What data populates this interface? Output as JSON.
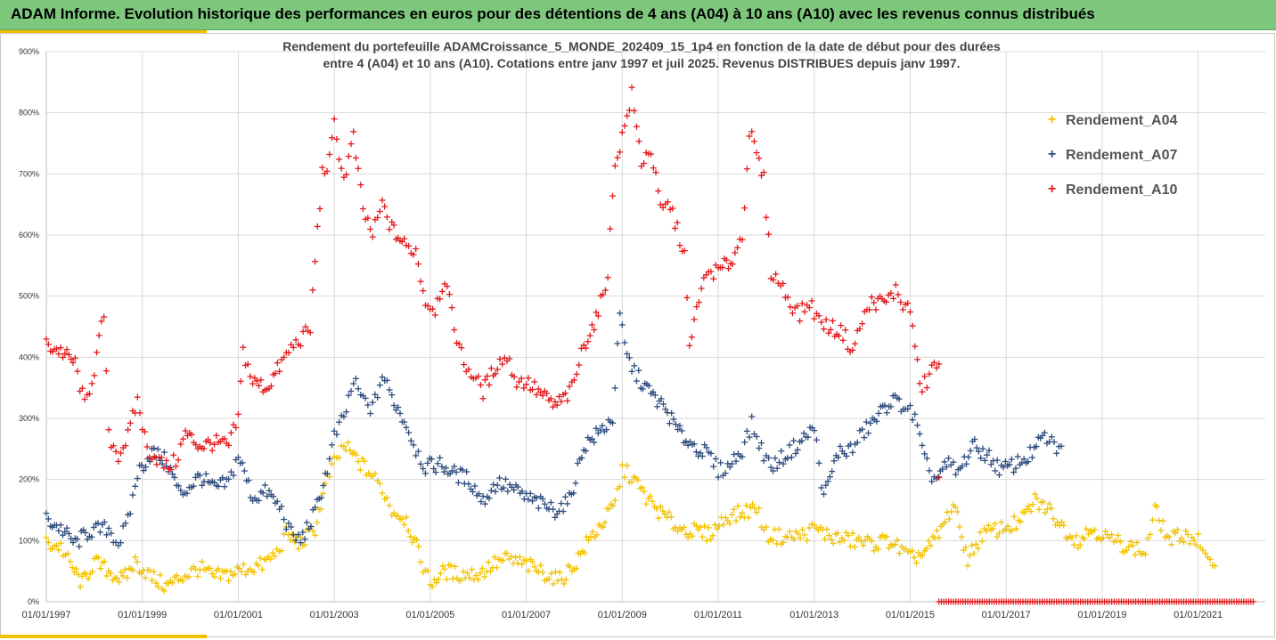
{
  "header": {
    "title": "ADAM Informe. Evolution historique des performances en euros pour des détentions de 4 ans (A04) à 10 ans (A10) avec les revenus connus distribués"
  },
  "colors": {
    "banner": "#7ec87e",
    "accent": "#f2c200",
    "A04": "#f2c200",
    "A07": "#2f4d7e",
    "A10": "#e41a1c",
    "grid": "#d9d9d9"
  },
  "chart_data": {
    "type": "scatter",
    "title_line1": "Rendement du portefeuille ADAMCroissance_5_MONDE_202409_15_1p4  en fonction de la date de début pour des durées",
    "title_line2": "entre 4 (A04) et 10 ans (A10). Cotations  entre janv 1997 et juil 2025. Revenus DISTRIBUES depuis janv 1997.",
    "xlabel": "",
    "ylabel": "",
    "xlim": [
      1997.0,
      2022.4
    ],
    "ylim": [
      0,
      900
    ],
    "y_ticks": [
      "0%",
      "100%",
      "200%",
      "300%",
      "400%",
      "500%",
      "600%",
      "700%",
      "800%",
      "900%"
    ],
    "x_ticks": [
      {
        "label": "01/01/1997",
        "year": 1997
      },
      {
        "label": "01/01/1999",
        "year": 1999
      },
      {
        "label": "01/01/2001",
        "year": 2001
      },
      {
        "label": "01/01/2003",
        "year": 2003
      },
      {
        "label": "01/01/2005",
        "year": 2005
      },
      {
        "label": "01/01/2007",
        "year": 2007
      },
      {
        "label": "01/01/2009",
        "year": 2009
      },
      {
        "label": "01/01/2011",
        "year": 2011
      },
      {
        "label": "01/01/2013",
        "year": 2013
      },
      {
        "label": "01/01/2015",
        "year": 2015
      },
      {
        "label": "01/01/2017",
        "year": 2017
      },
      {
        "label": "01/01/2019",
        "year": 2019
      },
      {
        "label": "01/01/2021",
        "year": 2021
      }
    ],
    "grid": true,
    "legend_position": "right",
    "marker": "+",
    "series": [
      {
        "name": "Rendement_A04",
        "key": "A04",
        "points": [
          [
            1997.0,
            95
          ],
          [
            1997.3,
            90
          ],
          [
            1997.5,
            60
          ],
          [
            1997.75,
            30
          ],
          [
            1998.0,
            65
          ],
          [
            1998.3,
            50
          ],
          [
            1998.6,
            35
          ],
          [
            1998.85,
            65
          ],
          [
            1999.2,
            40
          ],
          [
            1999.5,
            25
          ],
          [
            1999.8,
            40
          ],
          [
            2000.2,
            55
          ],
          [
            2000.5,
            40
          ],
          [
            2000.8,
            45
          ],
          [
            2001.2,
            55
          ],
          [
            2001.5,
            60
          ],
          [
            2001.8,
            80
          ],
          [
            2002.0,
            110
          ],
          [
            2002.3,
            95
          ],
          [
            2002.6,
            120
          ],
          [
            2002.85,
            200
          ],
          [
            2003.0,
            225
          ],
          [
            2003.2,
            255
          ],
          [
            2003.5,
            230
          ],
          [
            2003.8,
            205
          ],
          [
            2004.0,
            185
          ],
          [
            2004.2,
            150
          ],
          [
            2004.5,
            135
          ],
          [
            2004.8,
            70
          ],
          [
            2005.0,
            30
          ],
          [
            2005.3,
            50
          ],
          [
            2005.6,
            45
          ],
          [
            2006.0,
            45
          ],
          [
            2006.3,
            60
          ],
          [
            2006.6,
            70
          ],
          [
            2007.0,
            60
          ],
          [
            2007.3,
            50
          ],
          [
            2007.7,
            35
          ],
          [
            2008.0,
            60
          ],
          [
            2008.3,
            100
          ],
          [
            2008.6,
            130
          ],
          [
            2008.85,
            160
          ],
          [
            2009.0,
            215
          ],
          [
            2009.2,
            205
          ],
          [
            2009.5,
            170
          ],
          [
            2009.8,
            145
          ],
          [
            2010.2,
            120
          ],
          [
            2010.5,
            115
          ],
          [
            2010.8,
            110
          ],
          [
            2011.2,
            140
          ],
          [
            2011.5,
            145
          ],
          [
            2011.8,
            155
          ],
          [
            2012.0,
            110
          ],
          [
            2012.4,
            105
          ],
          [
            2012.8,
            110
          ],
          [
            2013.0,
            120
          ],
          [
            2013.4,
            105
          ],
          [
            2013.8,
            100
          ],
          [
            2014.2,
            95
          ],
          [
            2014.6,
            100
          ],
          [
            2015.0,
            70
          ],
          [
            2015.3,
            80
          ],
          [
            2015.6,
            110
          ],
          [
            2015.9,
            160
          ],
          [
            2016.2,
            70
          ],
          [
            2016.5,
            110
          ],
          [
            2016.9,
            120
          ],
          [
            2017.3,
            130
          ],
          [
            2017.6,
            165
          ],
          [
            2017.9,
            150
          ],
          [
            2018.2,
            120
          ],
          [
            2018.5,
            100
          ],
          [
            2018.8,
            120
          ],
          [
            2019.2,
            100
          ],
          [
            2019.6,
            90
          ],
          [
            2019.9,
            80
          ],
          [
            2020.1,
            150
          ],
          [
            2020.4,
            100
          ],
          [
            2020.7,
            110
          ],
          [
            2021.0,
            100
          ],
          [
            2021.2,
            60
          ],
          [
            2021.4,
            70
          ]
        ]
      },
      {
        "name": "Rendement_A07",
        "key": "A07",
        "points": [
          [
            1997.0,
            135
          ],
          [
            1997.3,
            120
          ],
          [
            1997.6,
            95
          ],
          [
            1997.9,
            115
          ],
          [
            1998.3,
            120
          ],
          [
            1998.5,
            95
          ],
          [
            1998.7,
            130
          ],
          [
            1998.9,
            210
          ],
          [
            1999.2,
            245
          ],
          [
            1999.5,
            230
          ],
          [
            1999.8,
            175
          ],
          [
            2000.2,
            205
          ],
          [
            2000.5,
            185
          ],
          [
            2000.8,
            195
          ],
          [
            2001.0,
            240
          ],
          [
            2001.3,
            170
          ],
          [
            2001.6,
            180
          ],
          [
            2001.9,
            150
          ],
          [
            2002.1,
            110
          ],
          [
            2002.3,
            100
          ],
          [
            2002.6,
            145
          ],
          [
            2002.9,
            230
          ],
          [
            2003.0,
            270
          ],
          [
            2003.2,
            300
          ],
          [
            2003.4,
            360
          ],
          [
            2003.6,
            330
          ],
          [
            2003.8,
            315
          ],
          [
            2004.0,
            370
          ],
          [
            2004.2,
            335
          ],
          [
            2004.5,
            290
          ],
          [
            2004.7,
            250
          ],
          [
            2004.9,
            220
          ],
          [
            2005.2,
            225
          ],
          [
            2005.5,
            210
          ],
          [
            2005.8,
            200
          ],
          [
            2006.1,
            165
          ],
          [
            2006.4,
            195
          ],
          [
            2006.7,
            185
          ],
          [
            2007.0,
            170
          ],
          [
            2007.3,
            160
          ],
          [
            2007.6,
            150
          ],
          [
            2007.9,
            165
          ],
          [
            2008.2,
            255
          ],
          [
            2008.5,
            275
          ],
          [
            2008.8,
            300
          ],
          [
            2008.95,
            465
          ],
          [
            2009.1,
            400
          ],
          [
            2009.3,
            370
          ],
          [
            2009.6,
            340
          ],
          [
            2009.9,
            315
          ],
          [
            2010.2,
            275
          ],
          [
            2010.5,
            255
          ],
          [
            2010.8,
            240
          ],
          [
            2011.0,
            215
          ],
          [
            2011.2,
            220
          ],
          [
            2011.5,
            250
          ],
          [
            2011.7,
            290
          ],
          [
            2011.9,
            250
          ],
          [
            2012.1,
            220
          ],
          [
            2012.4,
            240
          ],
          [
            2012.7,
            260
          ],
          [
            2013.0,
            285
          ],
          [
            2013.2,
            170
          ],
          [
            2013.5,
            245
          ],
          [
            2013.8,
            250
          ],
          [
            2014.0,
            275
          ],
          [
            2014.3,
            300
          ],
          [
            2014.6,
            330
          ],
          [
            2014.9,
            320
          ],
          [
            2015.1,
            300
          ],
          [
            2015.3,
            230
          ],
          [
            2015.5,
            200
          ],
          [
            2015.8,
            225
          ],
          [
            2016.0,
            210
          ],
          [
            2016.3,
            255
          ],
          [
            2016.6,
            240
          ],
          [
            2016.9,
            215
          ],
          [
            2017.2,
            225
          ],
          [
            2017.5,
            240
          ],
          [
            2017.8,
            270
          ],
          [
            2018.0,
            255
          ],
          [
            2018.2,
            245
          ]
        ]
      },
      {
        "name": "Rendement_A10",
        "key": "A10",
        "points": [
          [
            1997.0,
            420
          ],
          [
            1997.3,
            410
          ],
          [
            1997.6,
            390
          ],
          [
            1997.8,
            320
          ],
          [
            1998.0,
            380
          ],
          [
            1998.2,
            470
          ],
          [
            1998.3,
            270
          ],
          [
            1998.5,
            240
          ],
          [
            1998.7,
            270
          ],
          [
            1998.9,
            330
          ],
          [
            1999.1,
            250
          ],
          [
            1999.3,
            235
          ],
          [
            1999.5,
            220
          ],
          [
            1999.7,
            230
          ],
          [
            1999.9,
            275
          ],
          [
            2000.2,
            255
          ],
          [
            2000.5,
            260
          ],
          [
            2000.8,
            255
          ],
          [
            2001.0,
            300
          ],
          [
            2001.1,
            410
          ],
          [
            2001.3,
            360
          ],
          [
            2001.6,
            350
          ],
          [
            2001.9,
            390
          ],
          [
            2002.1,
            415
          ],
          [
            2002.3,
            430
          ],
          [
            2002.5,
            445
          ],
          [
            2002.6,
            560
          ],
          [
            2002.75,
            700
          ],
          [
            2002.9,
            720
          ],
          [
            2003.0,
            780
          ],
          [
            2003.2,
            690
          ],
          [
            2003.4,
            760
          ],
          [
            2003.6,
            640
          ],
          [
            2003.8,
            600
          ],
          [
            2004.0,
            650
          ],
          [
            2004.2,
            610
          ],
          [
            2004.5,
            580
          ],
          [
            2004.7,
            575
          ],
          [
            2004.9,
            490
          ],
          [
            2005.1,
            480
          ],
          [
            2005.3,
            530
          ],
          [
            2005.5,
            450
          ],
          [
            2005.7,
            390
          ],
          [
            2005.9,
            370
          ],
          [
            2006.1,
            345
          ],
          [
            2006.4,
            390
          ],
          [
            2006.6,
            400
          ],
          [
            2006.8,
            360
          ],
          [
            2007.0,
            360
          ],
          [
            2007.3,
            340
          ],
          [
            2007.6,
            320
          ],
          [
            2007.9,
            340
          ],
          [
            2008.0,
            360
          ],
          [
            2008.2,
            420
          ],
          [
            2008.5,
            470
          ],
          [
            2008.7,
            540
          ],
          [
            2008.85,
            720
          ],
          [
            2009.0,
            760
          ],
          [
            2009.2,
            830
          ],
          [
            2009.4,
            720
          ],
          [
            2009.6,
            740
          ],
          [
            2009.8,
            640
          ],
          [
            2010.0,
            650
          ],
          [
            2010.1,
            620
          ],
          [
            2010.3,
            570
          ],
          [
            2010.4,
            410
          ],
          [
            2010.6,
            500
          ],
          [
            2010.8,
            540
          ],
          [
            2011.0,
            540
          ],
          [
            2011.3,
            560
          ],
          [
            2011.5,
            600
          ],
          [
            2011.65,
            770
          ],
          [
            2011.8,
            730
          ],
          [
            2011.95,
            690
          ],
          [
            2012.1,
            540
          ],
          [
            2012.3,
            520
          ],
          [
            2012.5,
            490
          ],
          [
            2012.7,
            470
          ],
          [
            2012.9,
            490
          ],
          [
            2013.1,
            460
          ],
          [
            2013.3,
            450
          ],
          [
            2013.6,
            440
          ],
          [
            2013.8,
            410
          ],
          [
            2014.0,
            460
          ],
          [
            2014.2,
            490
          ],
          [
            2014.5,
            490
          ],
          [
            2014.7,
            510
          ],
          [
            2014.9,
            480
          ],
          [
            2015.0,
            480
          ],
          [
            2015.1,
            420
          ],
          [
            2015.2,
            350
          ],
          [
            2015.35,
            360
          ],
          [
            2015.5,
            390
          ],
          [
            2015.6,
            385
          ],
          [
            2015.6,
            0
          ],
          [
            2015.8,
            0
          ],
          [
            2016.0,
            0
          ],
          [
            2016.2,
            0
          ],
          [
            2016.4,
            0
          ],
          [
            2016.6,
            0
          ],
          [
            2016.8,
            0
          ],
          [
            2017.0,
            0
          ],
          [
            2017.2,
            0
          ],
          [
            2017.4,
            0
          ],
          [
            2017.6,
            0
          ],
          [
            2017.8,
            0
          ],
          [
            2018.0,
            0
          ],
          [
            2018.2,
            0
          ],
          [
            2018.4,
            0
          ],
          [
            2018.6,
            0
          ],
          [
            2018.8,
            0
          ],
          [
            2019.0,
            0
          ],
          [
            2019.2,
            0
          ],
          [
            2019.4,
            0
          ],
          [
            2019.6,
            0
          ],
          [
            2019.8,
            0
          ],
          [
            2020.0,
            0
          ],
          [
            2020.2,
            0
          ],
          [
            2020.4,
            0
          ],
          [
            2020.6,
            0
          ],
          [
            2020.8,
            0
          ],
          [
            2021.0,
            0
          ],
          [
            2021.2,
            0
          ],
          [
            2021.4,
            0
          ],
          [
            2021.6,
            0
          ],
          [
            2021.8,
            0
          ],
          [
            2022.0,
            0
          ],
          [
            2022.2,
            0
          ]
        ]
      }
    ]
  }
}
